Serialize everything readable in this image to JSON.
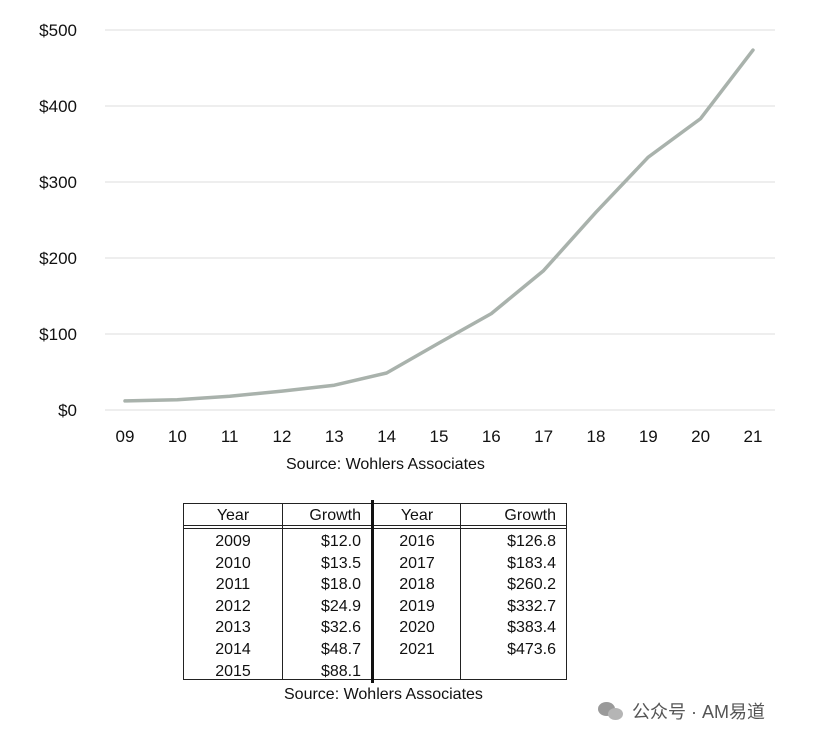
{
  "chart_data": {
    "type": "line",
    "x": [
      "09",
      "10",
      "11",
      "12",
      "13",
      "14",
      "15",
      "16",
      "17",
      "18",
      "19",
      "20",
      "21"
    ],
    "series": [
      {
        "values": [
          12.0,
          13.5,
          18.0,
          24.9,
          32.6,
          48.7,
          88.1,
          126.8,
          183.4,
          260.2,
          332.7,
          383.4,
          473.6
        ]
      }
    ],
    "y_ticks": [
      "$0",
      "$100",
      "$200",
      "$300",
      "$400",
      "$500"
    ],
    "ylim": [
      0,
      500
    ],
    "grid": true,
    "line_color": "#a9b2ac",
    "source": "Source: Wohlers Associates"
  },
  "table": {
    "headers": {
      "year": "Year",
      "growth": "Growth"
    },
    "left_rows": [
      {
        "year": "2009",
        "growth": "$12.0"
      },
      {
        "year": "2010",
        "growth": "$13.5"
      },
      {
        "year": "2011",
        "growth": "$18.0"
      },
      {
        "year": "2012",
        "growth": "$24.9"
      },
      {
        "year": "2013",
        "growth": "$32.6"
      },
      {
        "year": "2014",
        "growth": "$48.7"
      },
      {
        "year": "2015",
        "growth": "$88.1"
      }
    ],
    "right_rows": [
      {
        "year": "2016",
        "growth": "$126.8"
      },
      {
        "year": "2017",
        "growth": "$183.4"
      },
      {
        "year": "2018",
        "growth": "$260.2"
      },
      {
        "year": "2019",
        "growth": "$332.7"
      },
      {
        "year": "2020",
        "growth": "$383.4"
      },
      {
        "year": "2021",
        "growth": "$473.6"
      }
    ],
    "source": "Source: Wohlers Associates"
  },
  "watermark": {
    "text": "公众号 · AM易道",
    "icon": "wechat-icon"
  }
}
